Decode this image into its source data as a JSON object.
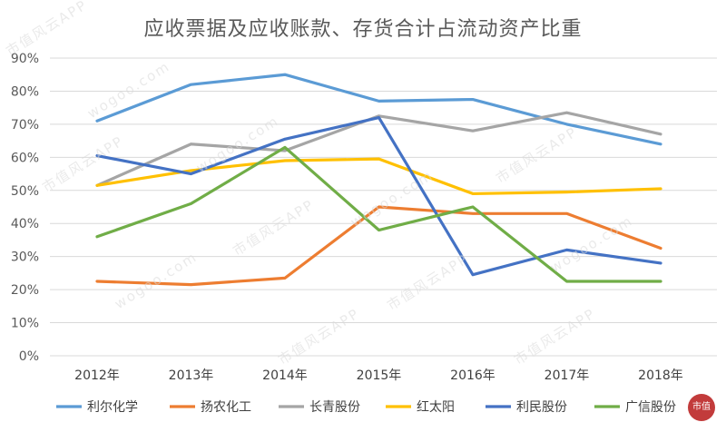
{
  "watermark": {
    "brand": "市值风云APP",
    "url": "wogoo.com"
  },
  "chart_data": {
    "type": "line",
    "title": "应收票据及应收账款、存货合计占流动资产比重",
    "xlabel": "",
    "ylabel": "",
    "categories": [
      "2012年",
      "2013年",
      "2014年",
      "2015年",
      "2016年",
      "2017年",
      "2018年"
    ],
    "ylim": [
      0,
      90
    ],
    "yticks": [
      "0%",
      "10%",
      "20%",
      "30%",
      "40%",
      "50%",
      "60%",
      "70%",
      "80%",
      "90%"
    ],
    "grid": true,
    "legend_position": "bottom",
    "series": [
      {
        "name": "利尔化学",
        "color": "#5b9bd5",
        "values": [
          71,
          82,
          85,
          77,
          77.5,
          70,
          64
        ]
      },
      {
        "name": "扬农化工",
        "color": "#ed7d31",
        "values": [
          22.5,
          21.5,
          23.5,
          45,
          43,
          43,
          32.5
        ]
      },
      {
        "name": "长青股份",
        "color": "#a5a5a5",
        "values": [
          51.5,
          64,
          62,
          72.5,
          68,
          73.5,
          67
        ]
      },
      {
        "name": "红太阳",
        "color": "#ffc000",
        "values": [
          51.5,
          56,
          59,
          59.5,
          49,
          49.5,
          50.5
        ]
      },
      {
        "name": "利民股份",
        "color": "#4472c4",
        "values": [
          60.5,
          55,
          65.5,
          72,
          24.5,
          32,
          28
        ]
      },
      {
        "name": "广信股份",
        "color": "#70ad47",
        "values": [
          36,
          46,
          63,
          38,
          45,
          22.5,
          22.5
        ]
      }
    ]
  },
  "logo": {
    "text": "市值"
  }
}
